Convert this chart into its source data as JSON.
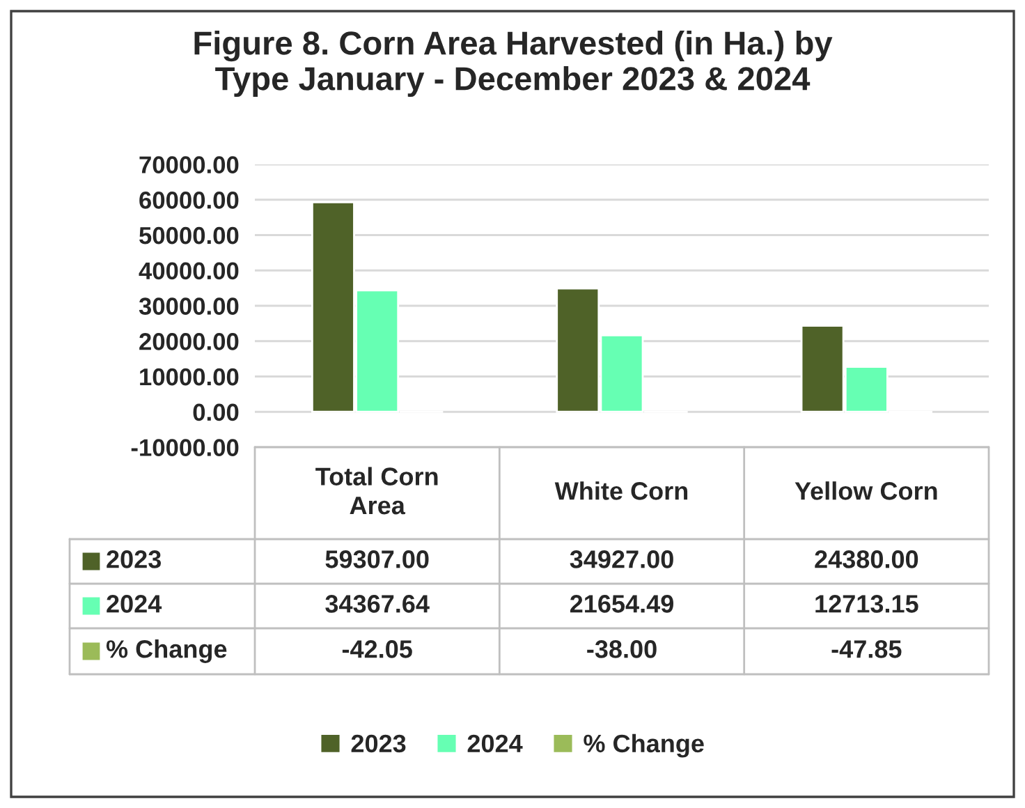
{
  "chart_data": {
    "type": "bar",
    "title": "Figure 8. Corn Area Harvested (in Ha.) by\nType January - December 2023 & 2024",
    "categories": [
      "Total Corn Area",
      "White Corn",
      "Yellow Corn"
    ],
    "series": [
      {
        "name": "2023",
        "color": "#4f6228",
        "values": [
          59307.0,
          34927.0,
          24380.0
        ],
        "value_labels": [
          "59307.00",
          "34927.00",
          "24380.00"
        ]
      },
      {
        "name": "2024",
        "color": "#66ffb3",
        "values": [
          34367.64,
          21654.49,
          12713.15
        ],
        "value_labels": [
          "34367.64",
          "21654.49",
          "12713.15"
        ]
      },
      {
        "name": "% Change",
        "color": "#9bbb59",
        "values": [
          -42.05,
          -38.0,
          -47.85
        ],
        "value_labels": [
          "-42.05",
          "-38.00",
          "-47.85"
        ]
      }
    ],
    "ylim": [
      -10000,
      70000
    ],
    "yticks": [
      {
        "value": -10000,
        "label": "-10000.00"
      },
      {
        "value": 0,
        "label": "0.00"
      },
      {
        "value": 10000,
        "label": "10000.00"
      },
      {
        "value": 20000,
        "label": "20000.00"
      },
      {
        "value": 30000,
        "label": "30000.00"
      },
      {
        "value": 40000,
        "label": "40000.00"
      },
      {
        "value": 50000,
        "label": "50000.00"
      },
      {
        "value": 60000,
        "label": "60000.00"
      },
      {
        "value": 70000,
        "label": "70000.00"
      }
    ],
    "grid": "y",
    "legend": "bottom"
  }
}
